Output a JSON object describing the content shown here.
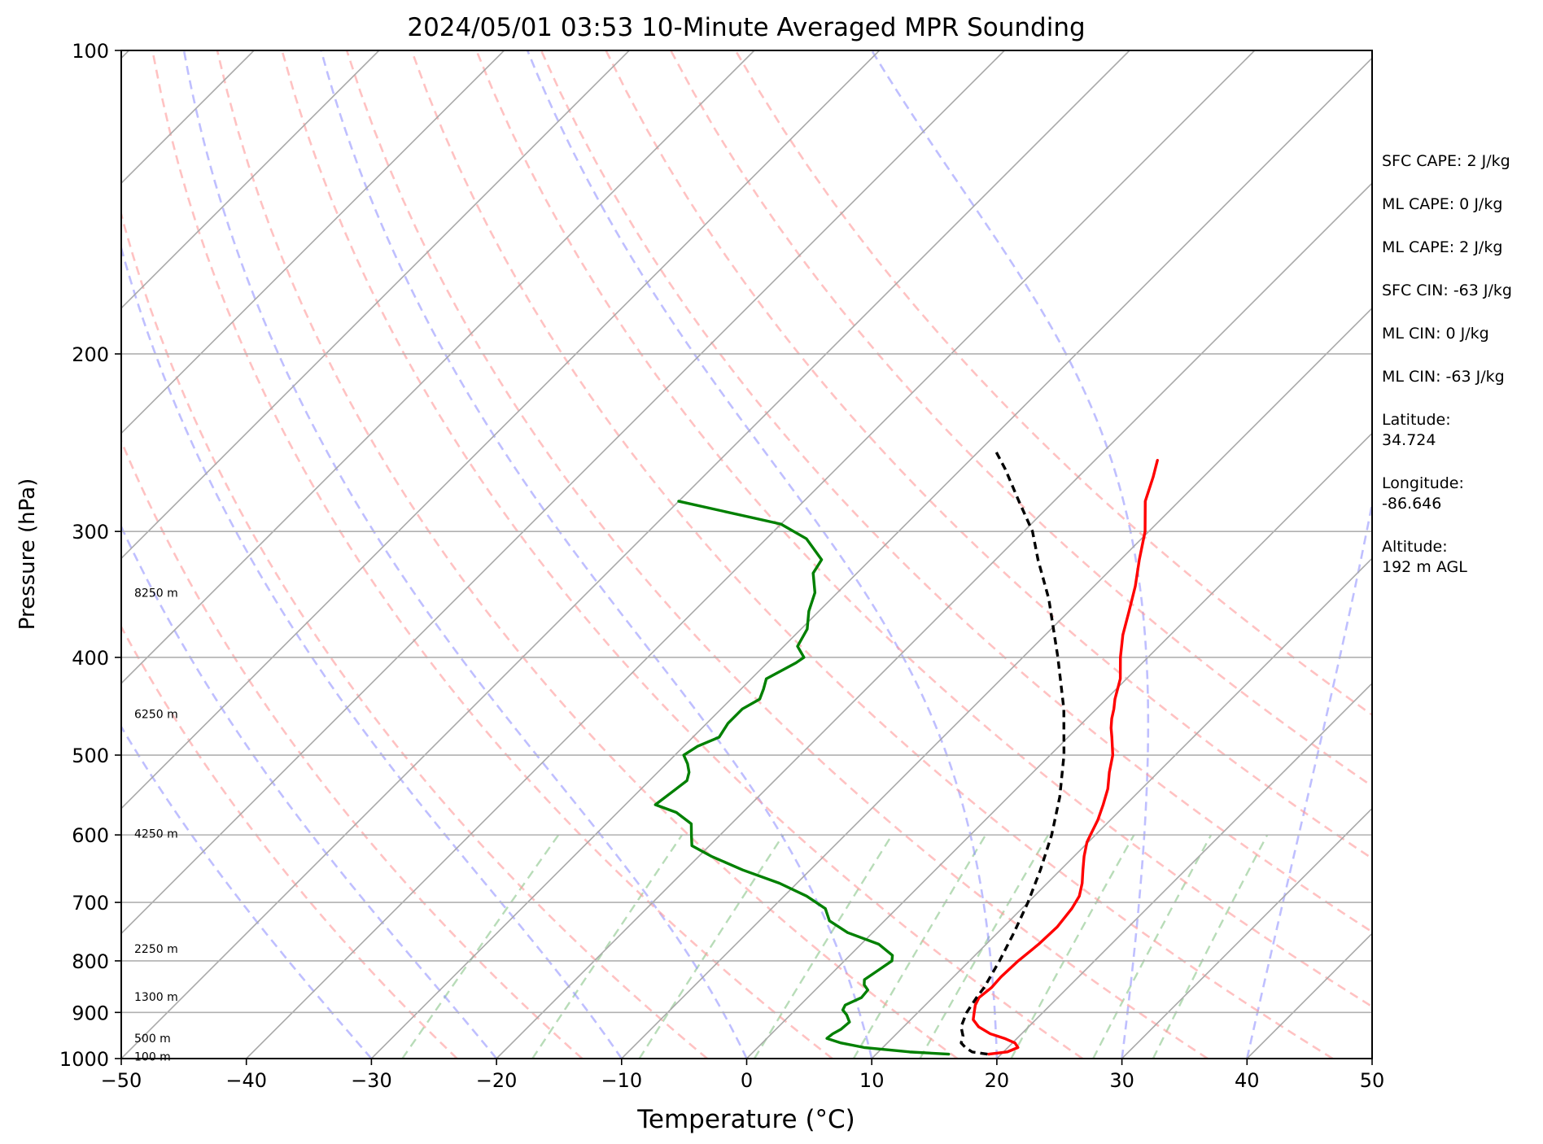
{
  "chart_data": {
    "type": "skew-t",
    "title": "2024/05/01 03:53 10-Minute Averaged MPR Sounding",
    "xlabel": "Temperature (°C)",
    "ylabel": "Pressure (hPa)",
    "xlim": [
      -50,
      50
    ],
    "ylim": [
      1000,
      100
    ],
    "y_scale": "log",
    "x_ticks": [
      -50,
      -40,
      -30,
      -20,
      -10,
      0,
      10,
      20,
      30,
      40,
      50
    ],
    "x_tick_labels": [
      "−50",
      "−40",
      "−30",
      "−20",
      "−10",
      "0",
      "10",
      "20",
      "30",
      "40",
      "50"
    ],
    "y_ticks": [
      1000,
      900,
      800,
      700,
      600,
      500,
      400,
      300,
      200,
      100
    ],
    "y_tick_labels": [
      "1000",
      "900",
      "800",
      "700",
      "600",
      "500",
      "400",
      "300",
      "200",
      "100"
    ],
    "grid": true,
    "skew": 1.0,
    "isotherm_spacing_c": 10,
    "dry_adiabats_theta_k": [
      250,
      260,
      270,
      280,
      290,
      300,
      310,
      320,
      330,
      340,
      350,
      360,
      370
    ],
    "moist_adiabats_start_c": [
      -30,
      -20,
      -10,
      0,
      10,
      20,
      30,
      40
    ],
    "mixing_ratio_lines_g_per_kg": [
      0.4,
      1,
      2,
      4,
      7,
      10,
      16,
      24,
      32
    ],
    "height_labels": [
      {
        "text": "100 m",
        "p": 995
      },
      {
        "text": "500 m",
        "p": 955
      },
      {
        "text": "1300 m",
        "p": 868
      },
      {
        "text": "2250 m",
        "p": 778
      },
      {
        "text": "4250 m",
        "p": 598
      },
      {
        "text": "6250 m",
        "p": 455
      },
      {
        "text": "8250 m",
        "p": 345
      }
    ],
    "series": [
      {
        "color": "#ff0000",
        "style": "solid",
        "points": [
          [
            990,
            19
          ],
          [
            985,
            20.3
          ],
          [
            975,
            20.8
          ],
          [
            965,
            20.2
          ],
          [
            955,
            19
          ],
          [
            945,
            17.5
          ],
          [
            930,
            16
          ],
          [
            915,
            15
          ],
          [
            900,
            14.5
          ],
          [
            885,
            14
          ],
          [
            870,
            13.7
          ],
          [
            850,
            13.9
          ],
          [
            830,
            13.8
          ],
          [
            800,
            13.9
          ],
          [
            770,
            14.2
          ],
          [
            740,
            14.3
          ],
          [
            710,
            14
          ],
          [
            690,
            13.6
          ],
          [
            670,
            12.8
          ],
          [
            650,
            11.8
          ],
          [
            630,
            10.8
          ],
          [
            610,
            9.9
          ],
          [
            600,
            9.6
          ],
          [
            580,
            9
          ],
          [
            560,
            8.2
          ],
          [
            540,
            7.3
          ],
          [
            520,
            6.1
          ],
          [
            500,
            5
          ],
          [
            480,
            3.5
          ],
          [
            470,
            2.7
          ],
          [
            460,
            2
          ],
          [
            450,
            1.4
          ],
          [
            440,
            0.7
          ],
          [
            420,
            -0.5
          ],
          [
            400,
            -2.2
          ],
          [
            380,
            -3.8
          ],
          [
            360,
            -5.2
          ],
          [
            340,
            -6.7
          ],
          [
            320,
            -8.5
          ],
          [
            300,
            -10.3
          ],
          [
            280,
            -12.7
          ],
          [
            265,
            -14
          ],
          [
            255,
            -15
          ]
        ]
      },
      {
        "color": "#008000",
        "style": "solid",
        "points": [
          [
            990,
            15.8
          ],
          [
            985,
            12.5
          ],
          [
            975,
            8.5
          ],
          [
            965,
            6.3
          ],
          [
            955,
            4.8
          ],
          [
            945,
            4.9
          ],
          [
            935,
            5.2
          ],
          [
            920,
            5.3
          ],
          [
            905,
            4.5
          ],
          [
            895,
            3.8
          ],
          [
            885,
            3.6
          ],
          [
            870,
            4.3
          ],
          [
            855,
            4.2
          ],
          [
            845,
            3.5
          ],
          [
            835,
            3.1
          ],
          [
            820,
            3.4
          ],
          [
            800,
            3.8
          ],
          [
            790,
            3.4
          ],
          [
            770,
            1.4
          ],
          [
            750,
            -2
          ],
          [
            730,
            -4.4
          ],
          [
            710,
            -5.7
          ],
          [
            690,
            -8.2
          ],
          [
            670,
            -11.4
          ],
          [
            650,
            -15.4
          ],
          [
            630,
            -19
          ],
          [
            615,
            -21.4
          ],
          [
            600,
            -22.3
          ],
          [
            585,
            -23.2
          ],
          [
            570,
            -25.3
          ],
          [
            560,
            -27.6
          ],
          [
            540,
            -27.2
          ],
          [
            530,
            -27
          ],
          [
            520,
            -27.5
          ],
          [
            510,
            -28.3
          ],
          [
            500,
            -29.3
          ],
          [
            490,
            -28.9
          ],
          [
            480,
            -27.9
          ],
          [
            465,
            -28.3
          ],
          [
            450,
            -28.3
          ],
          [
            440,
            -27.7
          ],
          [
            430,
            -28.2
          ],
          [
            420,
            -28.8
          ],
          [
            405,
            -27.7
          ],
          [
            400,
            -27.5
          ],
          [
            390,
            -28.9
          ],
          [
            375,
            -29.5
          ],
          [
            360,
            -30.8
          ],
          [
            345,
            -31.8
          ],
          [
            330,
            -33.5
          ],
          [
            320,
            -33.9
          ],
          [
            305,
            -36.8
          ],
          [
            295,
            -40
          ],
          [
            280,
            -50
          ]
        ]
      },
      {
        "color": "#000000",
        "style": "dashed",
        "points": [
          [
            990,
            18.9
          ],
          [
            985,
            17.5
          ],
          [
            975,
            16.6
          ],
          [
            965,
            15.9
          ],
          [
            950,
            15.5
          ],
          [
            930,
            14.6
          ],
          [
            900,
            13.9
          ],
          [
            870,
            13.5
          ],
          [
            850,
            13.3
          ],
          [
            800,
            12.4
          ],
          [
            750,
            11.3
          ],
          [
            700,
            10
          ],
          [
            650,
            8.4
          ],
          [
            600,
            6.5
          ],
          [
            550,
            4.1
          ],
          [
            500,
            1.1
          ],
          [
            450,
            -2.6
          ],
          [
            400,
            -7.2
          ],
          [
            350,
            -12.6
          ],
          [
            320,
            -16.6
          ],
          [
            300,
            -19.3
          ],
          [
            280,
            -22.8
          ],
          [
            260,
            -26.5
          ],
          [
            250,
            -28.6
          ]
        ]
      }
    ]
  },
  "stats": {
    "sfc_cape": "SFC CAPE: 2 J/kg",
    "ml_cape_1": "ML CAPE: 0 J/kg",
    "ml_cape_2": "ML CAPE: 2 J/kg",
    "sfc_cin": "SFC CIN: -63 J/kg",
    "ml_cin_1": "ML CIN: 0 J/kg",
    "ml_cin_2": "ML CIN: -63 J/kg",
    "latitude": "Latitude:\n34.724",
    "longitude": "Longitude:\n-86.646",
    "altitude": "Altitude:\n192 m AGL"
  }
}
